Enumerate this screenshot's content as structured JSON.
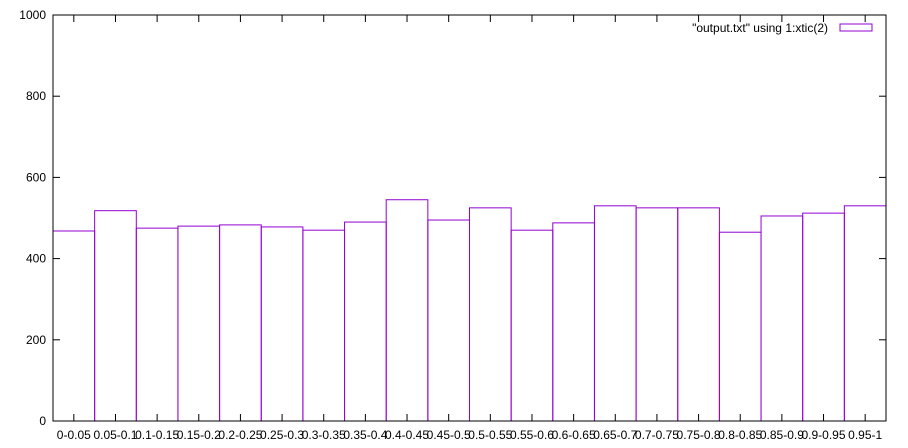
{
  "chart_data": {
    "type": "bar",
    "categories": [
      "0-0.05",
      "0.05-0.1",
      "0.1-0.15",
      "0.15-0.2",
      "0.2-0.25",
      "0.25-0.3",
      "0.3-0.35",
      "0.35-0.4",
      "0.4-0.45",
      "0.45-0.5",
      "0.5-0.55",
      "0.55-0.6",
      "0.6-0.65",
      "0.65-0.7",
      "0.7-0.75",
      "0.75-0.8",
      "0.8-0.85",
      "0.85-0.9",
      "0.9-0.95",
      "0.95-1"
    ],
    "series": [
      {
        "name": "\"output.txt\" using 1:xtic(2)",
        "values": [
          468,
          518,
          475,
          480,
          483,
          478,
          470,
          490,
          545,
          495,
          525,
          470,
          488,
          530,
          525,
          525,
          465,
          505,
          512,
          530
        ]
      }
    ],
    "ylim": [
      0,
      1000
    ],
    "yticks": [
      0,
      200,
      400,
      600,
      800,
      1000
    ],
    "legend_position": "top-right",
    "grid": false,
    "colors": {
      "series": "#9400d3",
      "axis": "#000000"
    }
  }
}
